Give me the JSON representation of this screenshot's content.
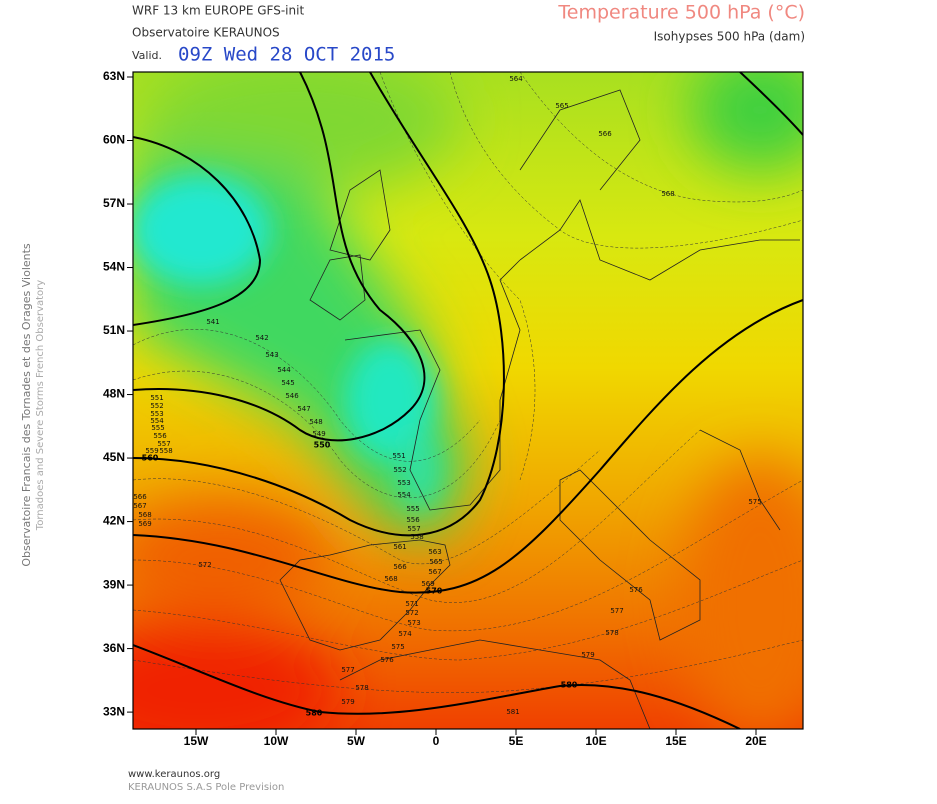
{
  "header": {
    "model": "WRF 13 km EUROPE  GFS-init",
    "observatory": "Observatoire KERAUNOS",
    "valid_prefix": "Valid.",
    "valid_time": "09Z Wed 28 OCT 2015",
    "field": "Temperature 500 hPa (°C)",
    "contours": "Isohypses 500 hPa (dam)"
  },
  "side_text": {
    "french": "Observatoire Francais des Tornades et des Orages Violents",
    "english": "Tornadoes and Severe Storms French Observatory"
  },
  "map": {
    "lat_ticks": [
      {
        "value": 63,
        "label": "63N"
      },
      {
        "value": 60,
        "label": "60N"
      },
      {
        "value": 57,
        "label": "57N"
      },
      {
        "value": 54,
        "label": "54N"
      },
      {
        "value": 51,
        "label": "51N"
      },
      {
        "value": 48,
        "label": "48N"
      },
      {
        "value": 45,
        "label": "45N"
      },
      {
        "value": 42,
        "label": "42N"
      },
      {
        "value": 39,
        "label": "39N"
      },
      {
        "value": 36,
        "label": "36N"
      },
      {
        "value": 33,
        "label": "33N"
      }
    ],
    "lon_ticks": [
      {
        "value": -15,
        "label": "15W"
      },
      {
        "value": -10,
        "label": "10W"
      },
      {
        "value": -5,
        "label": "5W"
      },
      0,
      {
        "value": 5,
        "label": "5E"
      },
      {
        "value": 10,
        "label": "10E"
      },
      {
        "value": 15,
        "label": "15E"
      },
      {
        "value": 20,
        "label": "20E"
      }
    ],
    "major_contour_labels": [
      550,
      560,
      570,
      580,
      580
    ],
    "minor_contour_labels": [
      564,
      565,
      566,
      568,
      541,
      542,
      543,
      544,
      545,
      546,
      547,
      548,
      549,
      551,
      552,
      553,
      554,
      555,
      556,
      557,
      558,
      561,
      563,
      565,
      566,
      567,
      568,
      569,
      571,
      572,
      573,
      574,
      575,
      576,
      577,
      578,
      579,
      572,
      575,
      576,
      577,
      578,
      579,
      581,
      551,
      552,
      553,
      554,
      555,
      556,
      557,
      558,
      559,
      566,
      567,
      568,
      569
    ]
  },
  "footer": {
    "site": "www.keraunos.org",
    "company": "KERAUNOS S.A.S Pole Prevision"
  }
}
